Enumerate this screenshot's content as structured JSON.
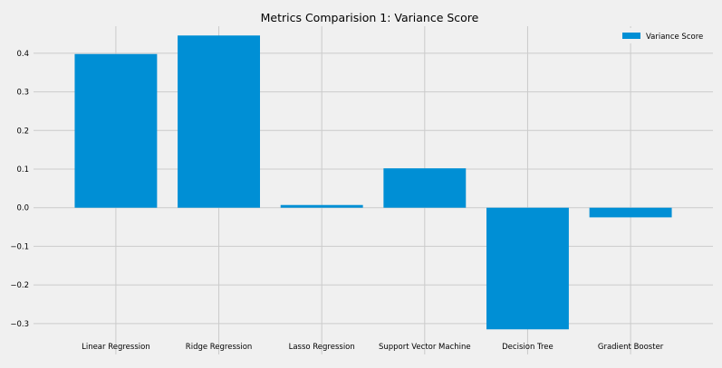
{
  "chart_data": {
    "type": "bar",
    "title": "Metrics Comparision 1: Variance Score",
    "xlabel": "",
    "ylabel": "",
    "categories": [
      "Linear Regression",
      "Ridge Regression",
      "Lasso Regression",
      "Support Vector Machine",
      "Decision Tree",
      "Gradient Booster"
    ],
    "series": [
      {
        "name": "Variance Score",
        "values": [
          0.398,
          0.446,
          0.007,
          0.102,
          -0.315,
          -0.025
        ]
      }
    ],
    "ylim": [
      -0.38,
      0.47
    ],
    "yticks": [
      -0.3,
      -0.2,
      -0.1,
      0.0,
      0.1,
      0.2,
      0.3,
      0.4
    ],
    "ytick_labels": [
      "−0.3",
      "−0.2",
      "−0.1",
      "0.0",
      "0.1",
      "0.2",
      "0.3",
      "0.4"
    ],
    "grid": true,
    "legend_position": "top-right",
    "colors": {
      "bar": "#008fd5",
      "plot_background": "#f0f0f0",
      "figure_background": "#f0f0f0",
      "grid": "#cbcbcb",
      "text": "#000000"
    }
  }
}
